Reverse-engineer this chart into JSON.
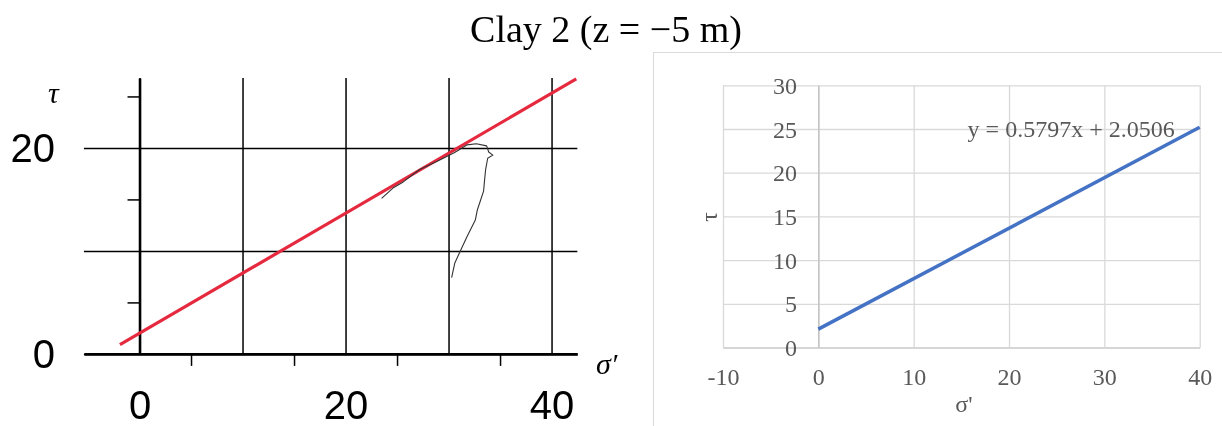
{
  "chart_data": [
    {
      "type": "line",
      "title": "Clay 2 (z = −5 m)",
      "xlabel": "σ′",
      "ylabel": "τ",
      "xlim": [
        -5.4,
        42.5
      ],
      "ylim": [
        0,
        26.8
      ],
      "xticks": [
        0,
        {
          "value": 5,
          "label": null
        },
        {
          "value": 10,
          "label": null
        },
        {
          "value": 15,
          "label": null
        },
        20,
        {
          "value": 25,
          "label": null
        },
        {
          "value": 30,
          "label": null
        },
        {
          "value": 35,
          "label": null
        },
        40
      ],
      "yticks": [
        0,
        {
          "value": 5,
          "label": null
        },
        {
          "value": 10,
          "label": null
        },
        {
          "value": 15,
          "label": null
        },
        20,
        {
          "value": 25,
          "label": null
        }
      ],
      "grid": true,
      "series": [
        {
          "color": "#e5293e",
          "x": [
            -1.9,
            42.4
          ],
          "values": [
            0.9,
            26.7
          ]
        },
        {
          "color": "#333333",
          "x": [
            30.3,
            30.6,
            31.1,
            31.8,
            32.6,
            32.8,
            33.1,
            33.4,
            33.5,
            33.6,
            33.8,
            34.3,
            33.9,
            33.7,
            32.7,
            31.8,
            31.0,
            30.5,
            28.9,
            27.2,
            25.6,
            24.6,
            23.5
          ],
          "values": [
            7.4,
            8.8,
            9.9,
            11.4,
            13.0,
            14.0,
            14.9,
            15.8,
            16.9,
            17.9,
            19.0,
            19.3,
            19.6,
            20.2,
            20.4,
            20.3,
            19.8,
            19.5,
            18.7,
            17.9,
            16.7,
            16.1,
            15.1
          ]
        }
      ]
    },
    {
      "type": "line",
      "xlabel": "σ'",
      "ylabel": "τ",
      "xlim": [
        -10,
        40
      ],
      "ylim": [
        0,
        30
      ],
      "xticks": [
        -10,
        0,
        10,
        20,
        30,
        40
      ],
      "yticks": [
        0,
        5,
        10,
        15,
        20,
        25,
        30
      ],
      "grid": true,
      "annotations": [
        "y = 0.5797x + 2.0506"
      ],
      "series": [
        {
          "color": "#4472c4",
          "x": [
            0,
            40
          ],
          "values": [
            2.1,
            25.2
          ]
        }
      ]
    }
  ]
}
